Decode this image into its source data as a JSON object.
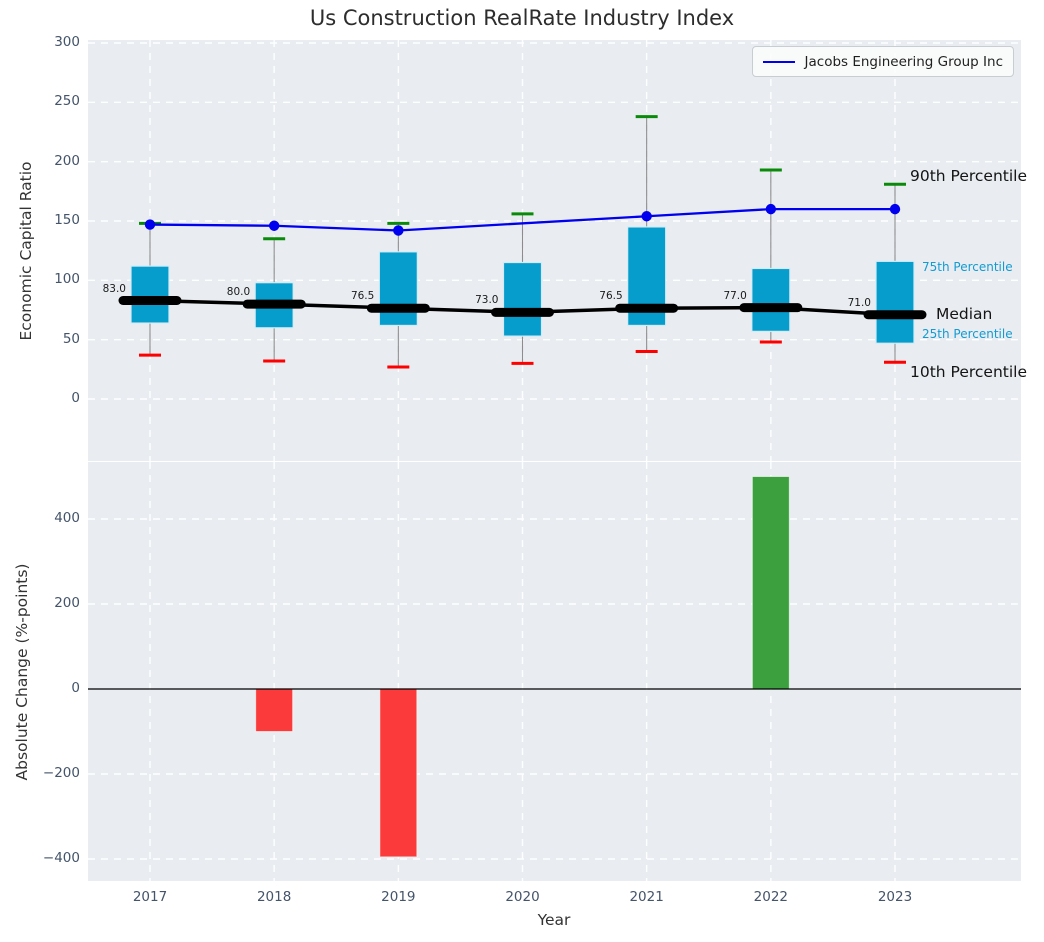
{
  "figure_title": "Us Construction RealRate Industry Index",
  "legend": {
    "label": "Jacobs Engineering Group Inc"
  },
  "chart_data": [
    {
      "type": "box-whisker-with-line",
      "title": "Us Construction RealRate Industry Index",
      "ylabel": "Economic Capital Ratio",
      "yticks": [
        0,
        50,
        100,
        150,
        200,
        250,
        300
      ],
      "ylim": [
        -52,
        302
      ],
      "grid": "white-dashed",
      "categories": [
        2017,
        2018,
        2019,
        2020,
        2021,
        2022,
        2023
      ],
      "percentile_90": [
        148,
        135,
        148,
        156,
        238,
        193,
        181
      ],
      "percentile_75": [
        112,
        98,
        124,
        115,
        145,
        110,
        116
      ],
      "median": [
        83.0,
        80.0,
        76.5,
        73.0,
        76.5,
        77.0,
        71.0
      ],
      "median_labels": [
        "83.0",
        "80.0",
        "76.5",
        "73.0",
        "76.5",
        "77.0",
        "71.0"
      ],
      "percentile_25": [
        64,
        60,
        62,
        53,
        62,
        57,
        47
      ],
      "percentile_10": [
        37,
        32,
        27,
        30,
        40,
        48,
        31
      ],
      "company": {
        "name": "Jacobs Engineering Group Inc",
        "values": [
          147,
          146,
          142,
          null,
          154,
          160,
          160
        ],
        "color": "#0000ee"
      },
      "annotations": [
        "90th Percentile",
        "75th Percentile",
        "Median",
        "25th Percentile",
        "10th Percentile"
      ],
      "legend_position": "upper right",
      "colors": {
        "box_fill": "#069ccb",
        "box_edge": "#d2ecf6",
        "cap_90": "#0a8a0a",
        "cap_10": "#ff0000",
        "whisker": "#8c8c8c",
        "median_line": "#000000",
        "plot_background": "#e9edf1"
      }
    },
    {
      "type": "bar",
      "ylabel": "Absolute Change (%-points)",
      "xlabel": "Year",
      "yticks": [
        -400,
        -200,
        0,
        200,
        400
      ],
      "ylim": [
        -455,
        535
      ],
      "grid": "white-dashed",
      "categories": [
        2017,
        2018,
        2019,
        2020,
        2021,
        2022,
        2023
      ],
      "values": [
        0,
        -100,
        -395,
        0,
        0,
        500,
        0
      ],
      "colors": {
        "positive_bar": "#3da03e",
        "negative_bar": "#fb3b3b",
        "zero_line": "#000000",
        "plot_background": "#e9edf1"
      }
    }
  ]
}
